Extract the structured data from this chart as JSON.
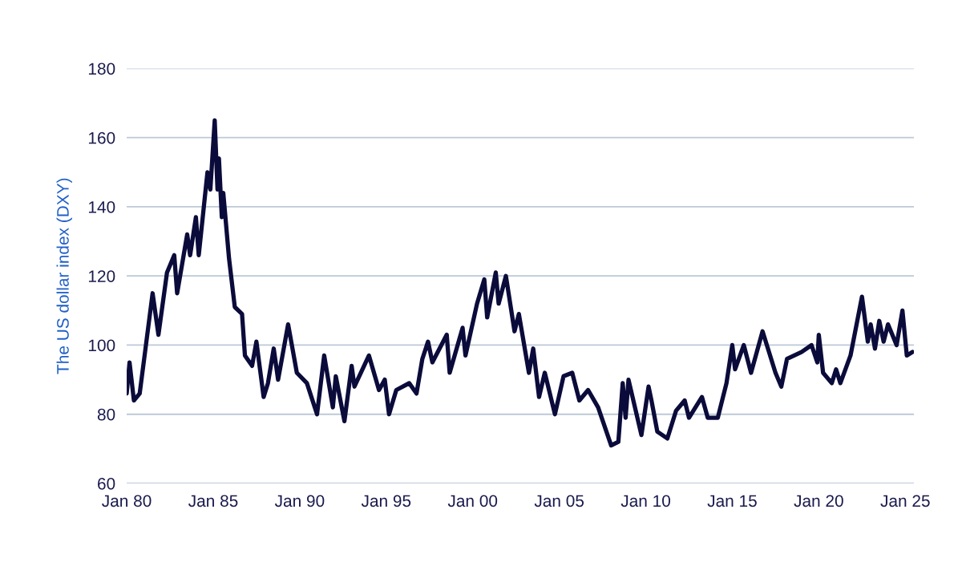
{
  "chart_data": {
    "type": "line",
    "ylabel": "The US dollar index (DXY)",
    "x": [
      "1980-01",
      "1980-03",
      "1980-06",
      "1980-10",
      "1981-02",
      "1981-07",
      "1981-11",
      "1982-05",
      "1982-10",
      "1982-12",
      "1983-07",
      "1983-09",
      "1984-01",
      "1984-03",
      "1984-09",
      "1984-11",
      "1985-02",
      "1985-04",
      "1985-05",
      "1985-07",
      "1985-08",
      "1985-12",
      "1986-04",
      "1986-09",
      "1986-11",
      "1987-04",
      "1987-07",
      "1987-12",
      "1988-03",
      "1988-07",
      "1988-10",
      "1989-05",
      "1989-11",
      "1990-06",
      "1991-01",
      "1991-06",
      "1991-12",
      "1992-02",
      "1992-08",
      "1993-01",
      "1993-03",
      "1994-01",
      "1994-08",
      "1994-12",
      "1995-03",
      "1995-08",
      "1996-05",
      "1996-10",
      "1997-02",
      "1997-06",
      "1997-09",
      "1998-07",
      "1998-09",
      "1999-06",
      "1999-08",
      "2000-04",
      "2000-09",
      "2000-11",
      "2001-05",
      "2001-07",
      "2001-12",
      "2002-06",
      "2002-09",
      "2003-04",
      "2003-07",
      "2003-11",
      "2004-03",
      "2004-10",
      "2005-04",
      "2005-10",
      "2006-03",
      "2006-09",
      "2007-04",
      "2008-01",
      "2008-06",
      "2008-09",
      "2008-11",
      "2009-01",
      "2009-10",
      "2010-03",
      "2010-05",
      "2010-09",
      "2011-04",
      "2011-10",
      "2012-04",
      "2012-07",
      "2013-04",
      "2013-08",
      "2014-03",
      "2014-09",
      "2015-01",
      "2015-03",
      "2015-09",
      "2016-02",
      "2016-10",
      "2017-07",
      "2017-11",
      "2018-03",
      "2019-01",
      "2019-08",
      "2019-12",
      "2020-01",
      "2020-04",
      "2020-10",
      "2021-01",
      "2021-04",
      "2021-11",
      "2022-07",
      "2022-11",
      "2023-01",
      "2023-04",
      "2023-07",
      "2023-10",
      "2024-01",
      "2024-07",
      "2024-11",
      "2025-02",
      "2025-06"
    ],
    "series": [
      {
        "color": "#0b0b3b",
        "values": [
          86,
          95,
          84,
          86,
          99,
          115,
          103,
          121,
          126,
          115,
          132,
          126,
          137,
          126,
          150,
          145,
          165,
          145,
          154,
          137,
          144,
          125,
          111,
          109,
          97,
          94,
          101,
          85,
          89,
          99,
          90,
          106,
          92,
          89,
          80,
          97,
          82,
          91,
          78,
          94,
          88,
          97,
          87,
          90,
          80,
          87,
          89,
          86,
          96,
          101,
          95,
          103,
          92,
          105,
          97,
          112,
          119,
          108,
          121,
          112,
          120,
          104,
          109,
          92,
          99,
          85,
          92,
          80,
          91,
          92,
          84,
          87,
          82,
          71,
          72,
          89,
          79,
          90,
          74,
          88,
          84,
          75,
          73,
          81,
          84,
          79,
          85,
          79,
          79,
          89,
          100,
          93,
          100,
          92,
          104,
          92,
          88,
          96,
          98,
          100,
          95,
          103,
          92,
          89,
          93,
          89,
          97,
          114,
          101,
          106,
          99,
          107,
          101,
          106,
          100,
          110,
          97,
          98
        ]
      }
    ],
    "xlim": [
      "1980-01-01",
      "2025-07-01"
    ],
    "xticks": [
      {
        "value": "1980-01-01",
        "label": "Jan 80"
      },
      {
        "value": "1985-01-01",
        "label": "Jan 85"
      },
      {
        "value": "1990-01-01",
        "label": "Jan 90"
      },
      {
        "value": "1995-01-01",
        "label": "Jan 95"
      },
      {
        "value": "2000-01-01",
        "label": "Jan 00"
      },
      {
        "value": "2005-01-01",
        "label": "Jan 05"
      },
      {
        "value": "2010-01-01",
        "label": "Jan 10"
      },
      {
        "value": "2015-01-01",
        "label": "Jan 15"
      },
      {
        "value": "2020-01-01",
        "label": "Jan 20"
      },
      {
        "value": "2025-01-01",
        "label": "Jan 25"
      }
    ],
    "ylim": [
      60,
      180
    ],
    "yticks": [
      60,
      80,
      100,
      120,
      140,
      160,
      180
    ],
    "grid": "y",
    "legend": false,
    "marker": "none",
    "line_style": "solid"
  }
}
